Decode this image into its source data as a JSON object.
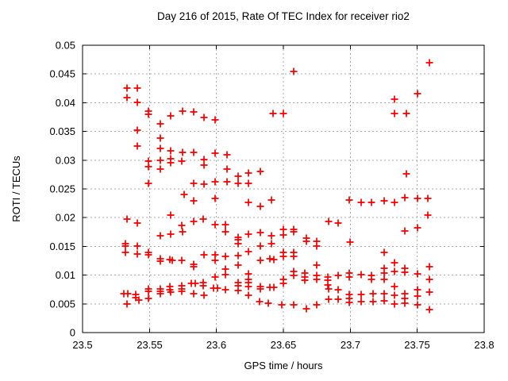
{
  "chart_data": {
    "type": "scatter",
    "title": "Day 216 of 2015, Rate Of TEC Index for receiver rio2",
    "xlabel": "GPS time / hours",
    "ylabel": "ROTI / TECUs",
    "xlim": [
      23.5,
      23.8
    ],
    "ylim": [
      0,
      0.05
    ],
    "xticks": [
      23.5,
      23.55,
      23.6,
      23.65,
      23.7,
      23.75,
      23.8
    ],
    "xtick_labels": [
      "23.5",
      "23.55",
      "23.6",
      "23.65",
      "23.7",
      "23.75",
      "23.8"
    ],
    "yticks": [
      0,
      0.005,
      0.01,
      0.015,
      0.02,
      0.025,
      0.03,
      0.035,
      0.04,
      0.045,
      0.05
    ],
    "ytick_labels": [
      "0",
      "0.005",
      "0.01",
      "0.015",
      "0.02",
      "0.025",
      "0.03",
      "0.035",
      "0.04",
      "0.045",
      "0.05"
    ],
    "grid": true,
    "legend": "none",
    "marker": "plus",
    "marker_color": "#ee0000",
    "grid_color": "#a8a8a8",
    "border_color": "#000000",
    "series": [
      {
        "name": "ROTI",
        "points": [
          [
            23.533,
            0.0425
          ],
          [
            23.541,
            0.0425
          ],
          [
            23.533,
            0.0409
          ],
          [
            23.541,
            0.04
          ],
          [
            23.549,
            0.0386
          ],
          [
            23.549,
            0.038
          ],
          [
            23.575,
            0.0385
          ],
          [
            23.566,
            0.0377
          ],
          [
            23.558,
            0.0363
          ],
          [
            23.541,
            0.0352
          ],
          [
            23.558,
            0.0338
          ],
          [
            23.541,
            0.0324
          ],
          [
            23.558,
            0.0321
          ],
          [
            23.566,
            0.0316
          ],
          [
            23.575,
            0.0314
          ],
          [
            23.558,
            0.03
          ],
          [
            23.566,
            0.0303
          ],
          [
            23.566,
            0.0295
          ],
          [
            23.574,
            0.0298
          ],
          [
            23.549,
            0.0298
          ],
          [
            23.549,
            0.0288
          ],
          [
            23.558,
            0.0285
          ],
          [
            23.549,
            0.0259
          ],
          [
            23.583,
            0.0384
          ],
          [
            23.591,
            0.0374
          ],
          [
            23.599,
            0.037
          ],
          [
            23.642,
            0.0381
          ],
          [
            23.65,
            0.0381
          ],
          [
            23.583,
            0.0313
          ],
          [
            23.599,
            0.0312
          ],
          [
            23.608,
            0.031
          ],
          [
            23.591,
            0.0301
          ],
          [
            23.591,
            0.0291
          ],
          [
            23.608,
            0.0284
          ],
          [
            23.599,
            0.0262
          ],
          [
            23.608,
            0.0262
          ],
          [
            23.616,
            0.0272
          ],
          [
            23.624,
            0.0277
          ],
          [
            23.633,
            0.028
          ],
          [
            23.583,
            0.026
          ],
          [
            23.591,
            0.0258
          ],
          [
            23.616,
            0.026
          ],
          [
            23.624,
            0.0259
          ],
          [
            23.658,
            0.0455
          ],
          [
            23.759,
            0.047
          ],
          [
            23.75,
            0.0416
          ],
          [
            23.733,
            0.0406
          ],
          [
            23.733,
            0.0381
          ],
          [
            23.742,
            0.0381
          ],
          [
            23.742,
            0.0276
          ],
          [
            23.576,
            0.0241
          ],
          [
            23.533,
            0.0197
          ],
          [
            23.541,
            0.019
          ],
          [
            23.566,
            0.0204
          ],
          [
            23.574,
            0.0186
          ],
          [
            23.575,
            0.0176
          ],
          [
            23.558,
            0.0168
          ],
          [
            23.566,
            0.0171
          ],
          [
            23.532,
            0.0155
          ],
          [
            23.532,
            0.0151
          ],
          [
            23.541,
            0.0151
          ],
          [
            23.532,
            0.0139
          ],
          [
            23.541,
            0.0137
          ],
          [
            23.549,
            0.014
          ],
          [
            23.549,
            0.0136
          ],
          [
            23.558,
            0.0129
          ],
          [
            23.558,
            0.0125
          ],
          [
            23.565,
            0.0127
          ],
          [
            23.567,
            0.0126
          ],
          [
            23.574,
            0.0126
          ],
          [
            23.531,
            0.0068
          ],
          [
            23.534,
            0.0068
          ],
          [
            23.533,
            0.005
          ],
          [
            23.54,
            0.0066
          ],
          [
            23.54,
            0.0061
          ],
          [
            23.542,
            0.0057
          ],
          [
            23.549,
            0.0076
          ],
          [
            23.549,
            0.0072
          ],
          [
            23.549,
            0.0059
          ],
          [
            23.558,
            0.0076
          ],
          [
            23.558,
            0.0072
          ],
          [
            23.558,
            0.0068
          ],
          [
            23.565,
            0.008
          ],
          [
            23.565,
            0.0075
          ],
          [
            23.566,
            0.0071
          ],
          [
            23.574,
            0.0082
          ],
          [
            23.574,
            0.0076
          ],
          [
            23.574,
            0.0072
          ],
          [
            23.583,
            0.0229
          ],
          [
            23.599,
            0.0233
          ],
          [
            23.624,
            0.0226
          ],
          [
            23.633,
            0.0219
          ],
          [
            23.641,
            0.023
          ],
          [
            23.583,
            0.0194
          ],
          [
            23.59,
            0.0197
          ],
          [
            23.599,
            0.0188
          ],
          [
            23.607,
            0.0188
          ],
          [
            23.607,
            0.0176
          ],
          [
            23.616,
            0.0166
          ],
          [
            23.616,
            0.0161
          ],
          [
            23.616,
            0.0155
          ],
          [
            23.624,
            0.0171
          ],
          [
            23.633,
            0.0174
          ],
          [
            23.641,
            0.0169
          ],
          [
            23.641,
            0.0155
          ],
          [
            23.65,
            0.018
          ],
          [
            23.65,
            0.017
          ],
          [
            23.633,
            0.015
          ],
          [
            23.591,
            0.0136
          ],
          [
            23.599,
            0.0136
          ],
          [
            23.599,
            0.0126
          ],
          [
            23.607,
            0.0132
          ],
          [
            23.616,
            0.0134
          ],
          [
            23.616,
            0.0118
          ],
          [
            23.624,
            0.0141
          ],
          [
            23.633,
            0.0126
          ],
          [
            23.64,
            0.0128
          ],
          [
            23.643,
            0.0127
          ],
          [
            23.65,
            0.0139
          ],
          [
            23.65,
            0.0133
          ],
          [
            23.583,
            0.0119
          ],
          [
            23.583,
            0.0115
          ],
          [
            23.607,
            0.0111
          ],
          [
            23.607,
            0.0101
          ],
          [
            23.624,
            0.0102
          ],
          [
            23.624,
            0.0093
          ],
          [
            23.599,
            0.0097
          ],
          [
            23.581,
            0.0086
          ],
          [
            23.584,
            0.0086
          ],
          [
            23.59,
            0.0087
          ],
          [
            23.59,
            0.0082
          ],
          [
            23.598,
            0.0078
          ],
          [
            23.601,
            0.0078
          ],
          [
            23.607,
            0.0075
          ],
          [
            23.616,
            0.0087
          ],
          [
            23.616,
            0.0082
          ],
          [
            23.616,
            0.0073
          ],
          [
            23.624,
            0.0087
          ],
          [
            23.624,
            0.008
          ],
          [
            23.624,
            0.0065
          ],
          [
            23.633,
            0.008
          ],
          [
            23.633,
            0.0076
          ],
          [
            23.632,
            0.0054
          ],
          [
            23.64,
            0.0079
          ],
          [
            23.643,
            0.0079
          ],
          [
            23.65,
            0.0093
          ],
          [
            23.65,
            0.0086
          ],
          [
            23.583,
            0.0067
          ],
          [
            23.591,
            0.0065
          ],
          [
            23.639,
            0.0051
          ],
          [
            23.649,
            0.0049
          ],
          [
            23.699,
            0.0231
          ],
          [
            23.708,
            0.0227
          ],
          [
            23.716,
            0.0227
          ],
          [
            23.725,
            0.0229
          ],
          [
            23.684,
            0.0194
          ],
          [
            23.691,
            0.019
          ],
          [
            23.658,
            0.018
          ],
          [
            23.658,
            0.0175
          ],
          [
            23.667,
            0.0165
          ],
          [
            23.667,
            0.0159
          ],
          [
            23.675,
            0.0159
          ],
          [
            23.675,
            0.015
          ],
          [
            23.7,
            0.0157
          ],
          [
            23.658,
            0.014
          ],
          [
            23.658,
            0.0132
          ],
          [
            23.658,
            0.0106
          ],
          [
            23.658,
            0.01
          ],
          [
            23.666,
            0.0103
          ],
          [
            23.666,
            0.0097
          ],
          [
            23.666,
            0.0091
          ],
          [
            23.675,
            0.0118
          ],
          [
            23.675,
            0.01
          ],
          [
            23.675,
            0.0093
          ],
          [
            23.683,
            0.0097
          ],
          [
            23.683,
            0.0091
          ],
          [
            23.683,
            0.0083
          ],
          [
            23.684,
            0.0076
          ],
          [
            23.691,
            0.01
          ],
          [
            23.691,
            0.0075
          ],
          [
            23.699,
            0.0103
          ],
          [
            23.699,
            0.0097
          ],
          [
            23.708,
            0.0101
          ],
          [
            23.716,
            0.01
          ],
          [
            23.716,
            0.0093
          ],
          [
            23.684,
            0.0058
          ],
          [
            23.691,
            0.0058
          ],
          [
            23.699,
            0.0066
          ],
          [
            23.699,
            0.006
          ],
          [
            23.699,
            0.0053
          ],
          [
            23.708,
            0.0066
          ],
          [
            23.708,
            0.0054
          ],
          [
            23.717,
            0.0067
          ],
          [
            23.717,
            0.0054
          ],
          [
            23.725,
            0.0067
          ],
          [
            23.725,
            0.0055
          ],
          [
            23.658,
            0.0048
          ],
          [
            23.667,
            0.0041
          ],
          [
            23.675,
            0.0048
          ],
          [
            23.733,
            0.0226
          ],
          [
            23.741,
            0.0235
          ],
          [
            23.75,
            0.0233
          ],
          [
            23.758,
            0.0234
          ],
          [
            23.758,
            0.0205
          ],
          [
            23.741,
            0.0177
          ],
          [
            23.75,
            0.0183
          ],
          [
            23.725,
            0.0139
          ],
          [
            23.733,
            0.0121
          ],
          [
            23.725,
            0.0112
          ],
          [
            23.733,
            0.0106
          ],
          [
            23.725,
            0.0103
          ],
          [
            23.741,
            0.0112
          ],
          [
            23.741,
            0.0105
          ],
          [
            23.75,
            0.0102
          ],
          [
            23.759,
            0.0114
          ],
          [
            23.759,
            0.0093
          ],
          [
            23.725,
            0.0093
          ],
          [
            23.733,
            0.008
          ],
          [
            23.733,
            0.0065
          ],
          [
            23.741,
            0.0068
          ],
          [
            23.741,
            0.006
          ],
          [
            23.75,
            0.0075
          ],
          [
            23.75,
            0.0064
          ],
          [
            23.759,
            0.007
          ],
          [
            23.733,
            0.005
          ],
          [
            23.741,
            0.0051
          ],
          [
            23.75,
            0.0049
          ],
          [
            23.759,
            0.004
          ]
        ]
      }
    ]
  }
}
